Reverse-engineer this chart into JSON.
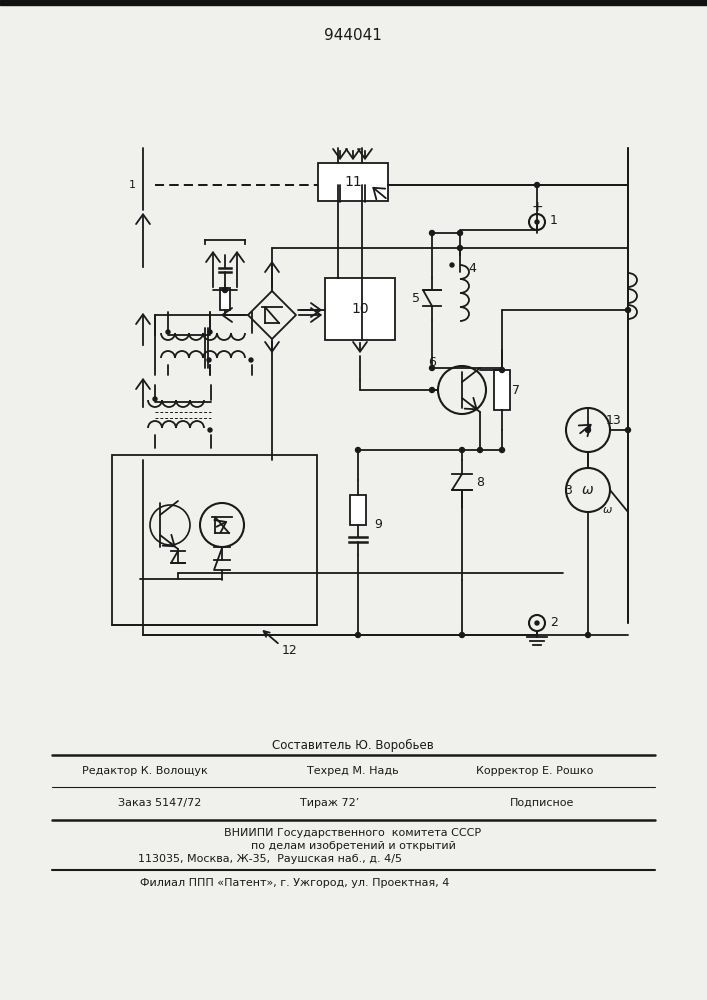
{
  "patent_number": "944041",
  "bg_color": "#f0f0ec",
  "line_color": "#1a1a1a",
  "top_bar_color": "#111111",
  "bottom_text": {
    "composer": "Составитель Ю. Воробьев",
    "editor": "Редактор К. Волощук",
    "tech": "Техред М. Надь",
    "corrector": "Корректор Е. Рошко",
    "order": "Заказ 5147/72",
    "circulation": "Тираж 72’",
    "subscription": "Подписное",
    "vnipi1": "ВНИИПИ Государственного  комитета СССР",
    "vnipi2": "по делам изобретений и открытий",
    "address": "113035, Москва, Ж-35,  Раушская наб., д. 4/5",
    "filial": "Филиал ППП «Патент», г. Ужгород, ул. Проектная, 4"
  }
}
